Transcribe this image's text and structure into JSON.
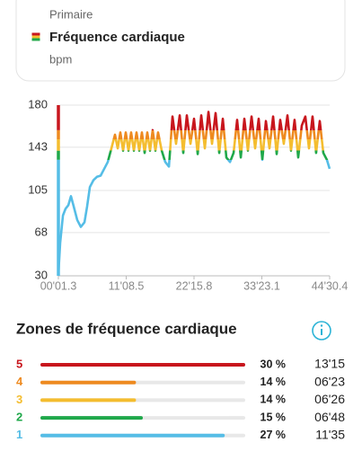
{
  "card": {
    "label": "Primaire",
    "title": "Fréquence cardiaque",
    "unit": "bpm"
  },
  "chart_data": {
    "type": "line",
    "x": [
      1,
      19,
      46,
      72,
      99,
      125,
      152,
      187,
      222,
      258,
      284,
      311,
      346,
      381,
      417,
      452,
      487,
      523,
      558,
      585,
      611,
      638,
      664,
      691,
      717,
      744,
      770,
      797,
      823,
      850,
      876,
      903,
      929,
      956,
      982,
      1018,
      1053,
      1089,
      1124,
      1159,
      1195,
      1230,
      1265,
      1301,
      1336,
      1372,
      1407,
      1442,
      1478,
      1513,
      1548,
      1584,
      1619,
      1654,
      1690,
      1725,
      1760,
      1796,
      1831,
      1866,
      1902,
      1937,
      1972,
      2008,
      2043,
      2078,
      2114,
      2149,
      2184,
      2219,
      2255,
      2290,
      2325,
      2361,
      2396,
      2431,
      2467,
      2502,
      2537,
      2573,
      2608,
      2643,
      2670
    ],
    "values": [
      31,
      59,
      83,
      89,
      92,
      100,
      91,
      79,
      73,
      77,
      91,
      108,
      114,
      117,
      118,
      124,
      130,
      142,
      154,
      142,
      156,
      140,
      156,
      140,
      156,
      140,
      156,
      140,
      156,
      138,
      156,
      140,
      158,
      140,
      156,
      140,
      130,
      126,
      170,
      146,
      171,
      138,
      171,
      146,
      168,
      137,
      171,
      142,
      174,
      146,
      173,
      138,
      168,
      134,
      130,
      138,
      167,
      134,
      168,
      140,
      170,
      142,
      168,
      132,
      166,
      142,
      170,
      137,
      167,
      146,
      171,
      140,
      167,
      134,
      162,
      170,
      142,
      170,
      138,
      166,
      138,
      132,
      124
    ],
    "ylim": [
      30,
      180
    ],
    "yticks": [
      30,
      68,
      105,
      143,
      180
    ],
    "xlim": [
      1.3,
      2670.4
    ],
    "xticks": [
      {
        "value": 1.3,
        "label": "00'01.3"
      },
      {
        "value": 668.5,
        "label": "11'08.5"
      },
      {
        "value": 1335.8,
        "label": "22'15.8"
      },
      {
        "value": 2003.1,
        "label": "33'23.1"
      },
      {
        "value": 2670.4,
        "label": "44'30.4"
      }
    ],
    "zone_limits": [
      132,
      140,
      150,
      158
    ],
    "grid": true
  },
  "zones": {
    "title": "Zones de fréquence cardiaque",
    "rows": [
      {
        "zone": "5",
        "color": "#c8161d",
        "percent": 30,
        "percent_label": "30 %",
        "duration": "13'15"
      },
      {
        "zone": "4",
        "color": "#ee8a1f",
        "percent": 14,
        "percent_label": "14 %",
        "duration": "06'23"
      },
      {
        "zone": "3",
        "color": "#f4bd2f",
        "percent": 14,
        "percent_label": "14 %",
        "duration": "06'26"
      },
      {
        "zone": "2",
        "color": "#1fa84a",
        "percent": 15,
        "percent_label": "15 %",
        "duration": "06'48"
      },
      {
        "zone": "1",
        "color": "#55bde6",
        "percent": 27,
        "percent_label": "27 %",
        "duration": "11'35"
      }
    ]
  }
}
